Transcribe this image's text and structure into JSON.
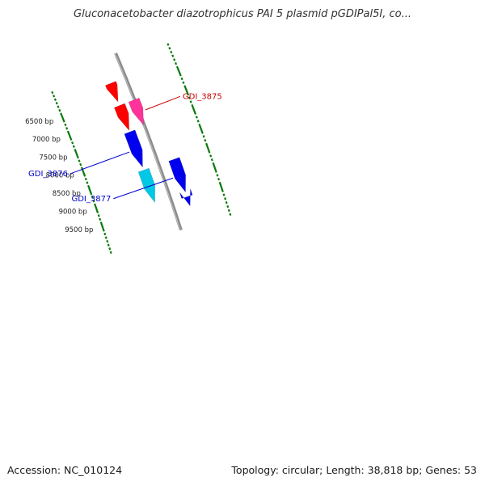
{
  "title": "Gluconacetobacter diazotrophicus PAI 5 plasmid pGDIPal5I, co...",
  "footer": {
    "accession": "Accession: NC_010124",
    "summary": "Topology: circular; Length: 38,818 bp; Genes: 53"
  },
  "colors": {
    "backbone": "#8c8c8c",
    "tick": "#0a7a0a",
    "tick_label": "#222222",
    "red_gene": "#ff0000",
    "pink_gene": "#ff3399",
    "blue_gene": "#0000ee",
    "cyan_gene": "#00c8e6",
    "label_red": "#cc0000",
    "label_blue": "#0000cc"
  },
  "ticks": [
    {
      "bp": 6500,
      "label": "6500 bp"
    },
    {
      "bp": 7000,
      "label": "7000 bp"
    },
    {
      "bp": 7500,
      "label": "7500 bp"
    },
    {
      "bp": 8000,
      "label": "8000 bp"
    },
    {
      "bp": 8500,
      "label": "8500 bp"
    },
    {
      "bp": 9000,
      "label": "9000 bp"
    },
    {
      "bp": 9500,
      "label": "9500 bp"
    }
  ],
  "features": [
    {
      "name": "gene-red-top",
      "from_bp": 6150,
      "to_bp": 6650,
      "track": "inner",
      "color": "red",
      "label": null
    },
    {
      "name": "gene-red",
      "from_bp": 6750,
      "to_bp": 7420,
      "track": "inner",
      "color": "red",
      "label": null
    },
    {
      "name": "gene-pink",
      "from_bp": 6750,
      "to_bp": 7420,
      "track": "middle",
      "color": "pink",
      "label": "GDI_3875"
    },
    {
      "name": "gene-blue",
      "from_bp": 7460,
      "to_bp": 8400,
      "track": "inner",
      "color": "blue",
      "label": "GDI_3876"
    },
    {
      "name": "gene-cyan",
      "from_bp": 8480,
      "to_bp": 9340,
      "track": "inner",
      "color": "cyan",
      "label": null
    },
    {
      "name": "gene-blue-outer",
      "from_bp": 8480,
      "to_bp": 9340,
      "track": "outer",
      "color": "blue",
      "label": "GDI_3877"
    },
    {
      "name": "gene-blue-bottom",
      "from_bp": 9460,
      "to_bp": 9700,
      "track": "outer",
      "color": "blue",
      "label": null
    }
  ]
}
